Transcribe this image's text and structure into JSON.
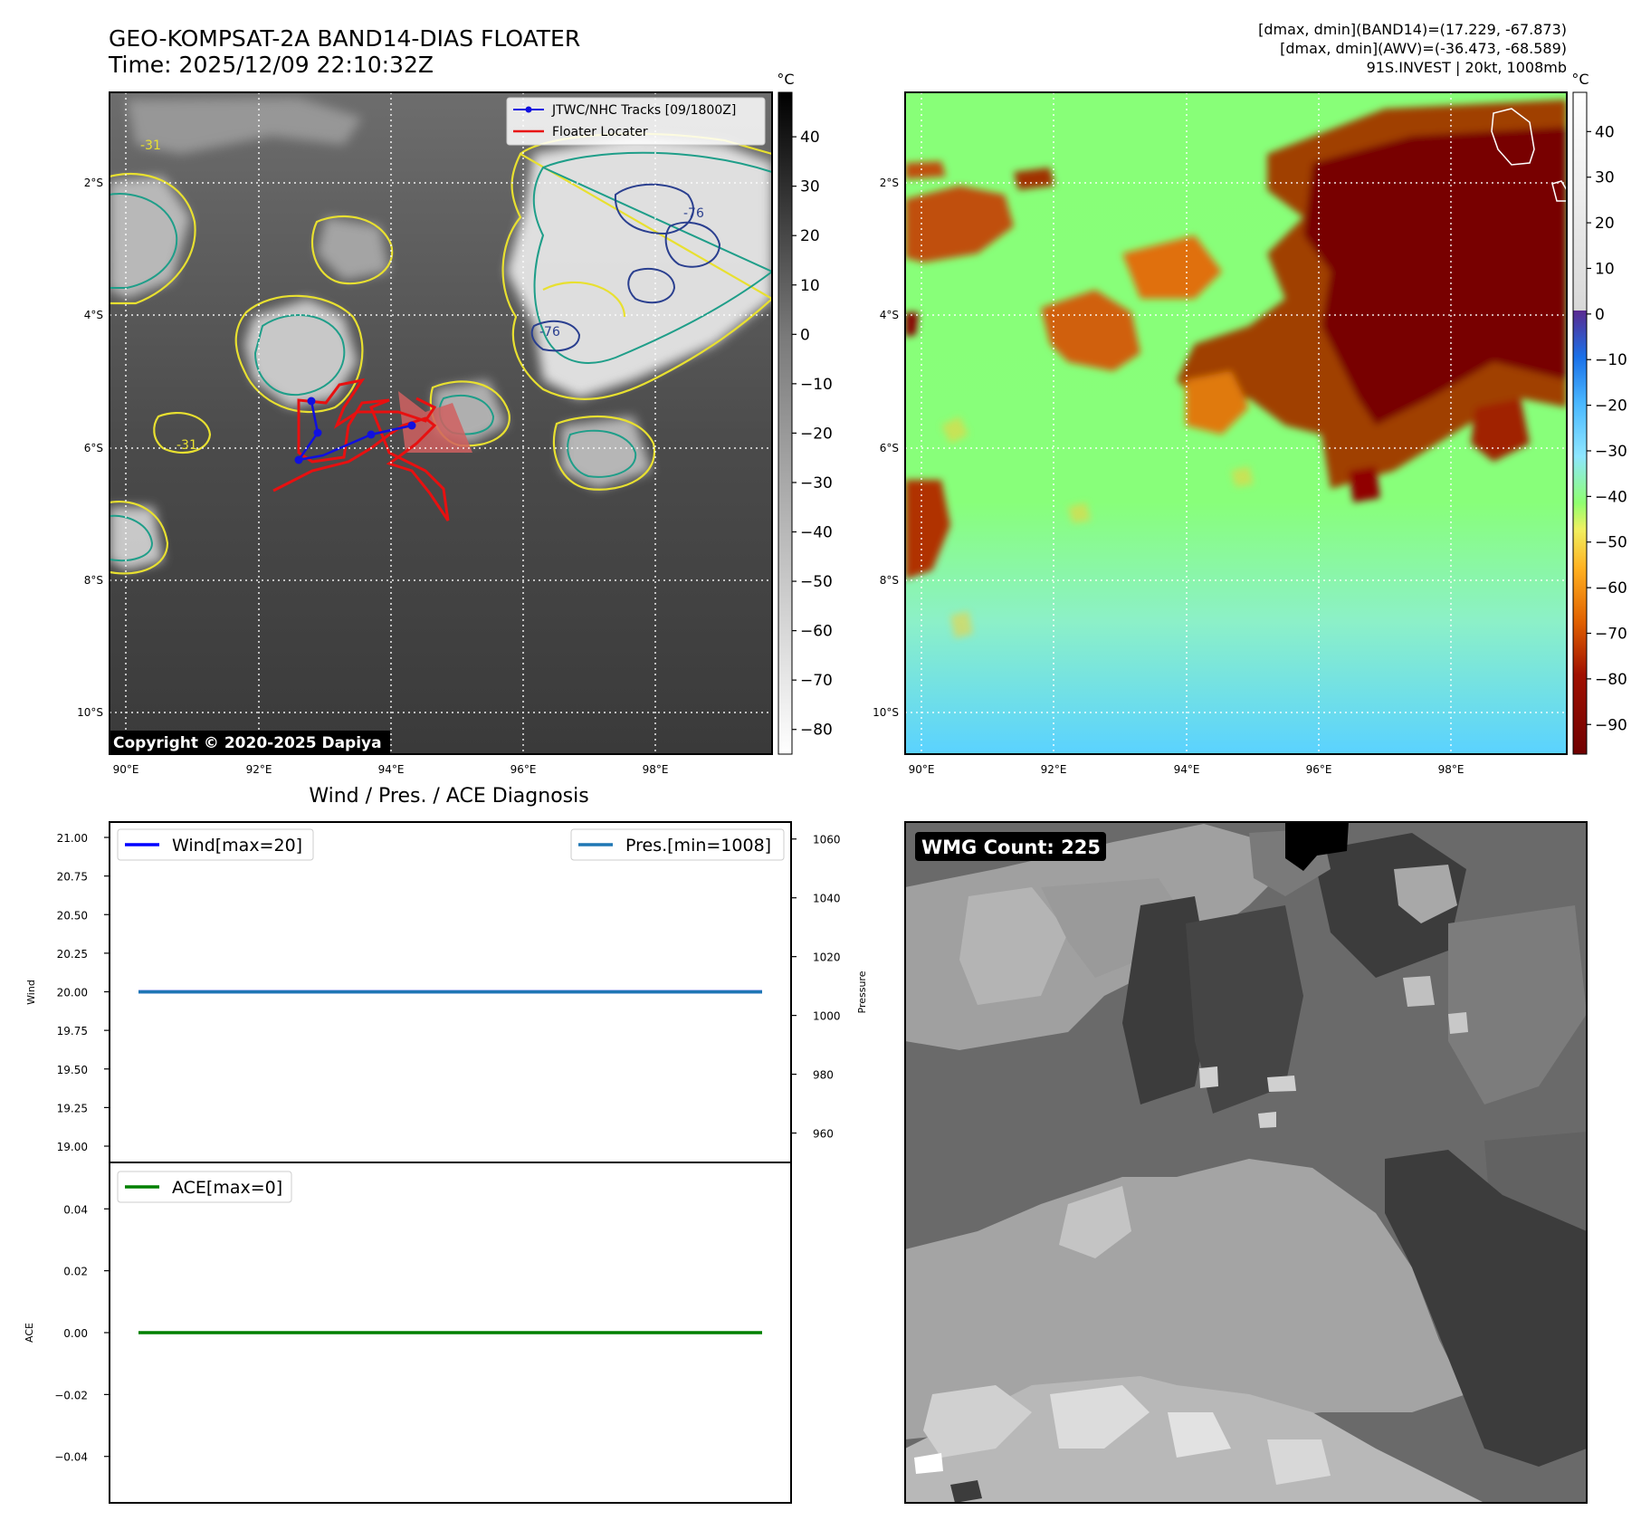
{
  "header": {
    "title_line1": "GEO-KOMPSAT-2A BAND14-DIAS FLOATER",
    "title_line2": "Time: 2025/12/09 22:10:32Z",
    "info_line1": "[dmax, dmin](BAND14)=(17.229, -67.873)",
    "info_line2": "[dmax, dmin](AWV)=(-36.473, -68.589)",
    "info_line3": "91S.INVEST | 20kt, 1008mb"
  },
  "map": {
    "lon_labels": [
      "90°E",
      "92°E",
      "94°E",
      "96°E",
      "98°E"
    ],
    "lat_labels": [
      "2°S",
      "4°S",
      "6°S",
      "8°S",
      "10°S"
    ],
    "contour_labels": [
      "-31",
      "-76"
    ],
    "legend": [
      "JTWC/NHC Tracks [09/1800Z]",
      "Floater Locater"
    ],
    "copyright": "Copyright © 2020-2025 Dapiya",
    "unit": "°C",
    "colorbar1_ticks": [
      "40",
      "30",
      "20",
      "10",
      "0",
      "−10",
      "−20",
      "−30",
      "−40",
      "−50",
      "−60",
      "−70",
      "−80"
    ],
    "colorbar2_ticks": [
      "40",
      "30",
      "20",
      "10",
      "0",
      "−10",
      "−20",
      "−30",
      "−40",
      "−50",
      "−60",
      "−70",
      "−80",
      "−90"
    ],
    "colors": {
      "track": "#1010e0",
      "floater": "#e81010",
      "contour_cold": "#2a3f8f",
      "contour_mid": "#1f9e89",
      "contour_warm": "#e8e030"
    }
  },
  "wmg": {
    "label": "WMG Count: 225"
  },
  "chart_data": [
    {
      "type": "line",
      "title": "Wind / Pres. / ACE Diagnosis",
      "ylabel": "Wind",
      "y2label": "Pressure",
      "ylim": [
        19.0,
        21.0
      ],
      "y2lim": [
        950,
        1063
      ],
      "yticks": [
        "21.00",
        "20.75",
        "20.50",
        "20.25",
        "20.00",
        "19.75",
        "19.50",
        "19.25",
        "19.00"
      ],
      "y2ticks": [
        "1060",
        "1040",
        "1020",
        "1000",
        "980",
        "960"
      ],
      "series": [
        {
          "name": "Wind[max=20]",
          "axis": "left",
          "color": "#0000ff",
          "values": [
            20,
            20
          ]
        },
        {
          "name": "Pres.[min=1008]",
          "axis": "right",
          "color": "#1f77b4",
          "values": [
            1008,
            1008
          ]
        }
      ]
    },
    {
      "type": "line",
      "ylabel": "ACE",
      "ylim": [
        -0.055,
        0.055
      ],
      "yticks": [
        "0.04",
        "0.02",
        "0.00",
        "−0.02",
        "−0.04"
      ],
      "series": [
        {
          "name": "ACE[max=0]",
          "axis": "left",
          "color": "#008000",
          "values": [
            0,
            0
          ]
        }
      ]
    }
  ]
}
